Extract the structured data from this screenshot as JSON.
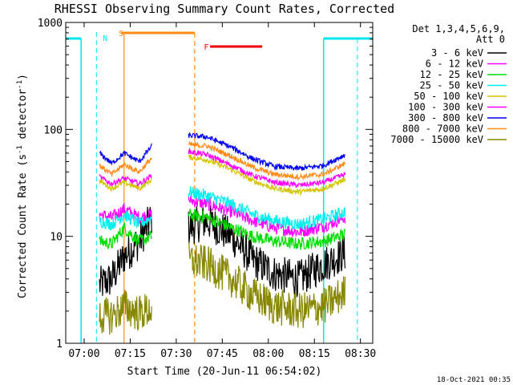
{
  "chart_data": {
    "type": "line",
    "title": "RHESSI Observing Summary Count Rates, Corrected",
    "xlabel": "Start Time (20-Jun-11 06:54:02)",
    "ylabel_main": "Corrected Count Rate (s",
    "ylabel_sup1": "-1",
    "ylabel_mid": " detector",
    "ylabel_sup2": "-1",
    "ylabel_end": ")",
    "yscale": "log",
    "ylim": [
      1,
      1000
    ],
    "xlim": [
      "06:54",
      "08:34"
    ],
    "x_ticks": [
      "07:00",
      "07:15",
      "07:30",
      "07:45",
      "08:00",
      "08:15",
      "08:30"
    ],
    "y_ticks": [
      "1",
      "10",
      "100",
      "1000"
    ],
    "legend_header": [
      "Det 1,3,4,5,6,9,",
      "Att 0"
    ],
    "legend_position": "right",
    "timestamp": "18-Oct-2021 00:35",
    "flags": [
      {
        "label": "N",
        "color": "#00e5ee"
      },
      {
        "label": "S",
        "color": "#ff8c1a"
      },
      {
        "label": "F",
        "color": "#ee0000"
      }
    ],
    "series": [
      {
        "name": "3 - 6 keV",
        "color": "#000000",
        "seg1": [
          3.5,
          4.0,
          6.5,
          9.0,
          15.0
        ],
        "seg2": [
          12.0,
          14.0,
          10.0,
          6.0,
          4.5,
          4.0,
          5.5,
          7.0
        ]
      },
      {
        "name": "6 - 12 keV",
        "color": "#ff00ff",
        "seg1": [
          16.0,
          15.0,
          18.0,
          15.0,
          16.0
        ],
        "seg2": [
          22.0,
          20.0,
          17.0,
          14.0,
          12.0,
          11.0,
          12.5,
          15.0
        ]
      },
      {
        "name": "12 - 25 keV",
        "color": "#00dd00",
        "seg1": [
          9.0,
          8.5,
          12.0,
          9.0,
          10.0
        ],
        "seg2": [
          16.0,
          15.0,
          12.0,
          10.0,
          9.0,
          8.5,
          9.0,
          10.5
        ]
      },
      {
        "name": "25 - 50 keV",
        "color": "#00eeee",
        "seg1": [
          14.0,
          13.0,
          16.0,
          13.0,
          15.0
        ],
        "seg2": [
          26.0,
          24.0,
          20.0,
          16.0,
          14.0,
          13.0,
          14.5,
          17.0
        ]
      },
      {
        "name": "50 - 100 keV",
        "color": "#d4c400",
        "seg1": [
          33.0,
          28.0,
          32.0,
          28.0,
          34.0
        ],
        "seg2": [
          55.0,
          52.0,
          42.0,
          33.0,
          28.0,
          26.0,
          28.0,
          34.0
        ]
      },
      {
        "name": "100 - 300 keV",
        "color": "#ff00ff",
        "seg1": [
          36.0,
          31.0,
          35.0,
          31.0,
          37.0
        ],
        "seg2": [
          62.0,
          58.0,
          46.0,
          37.0,
          32.0,
          30.0,
          32.0,
          38.0
        ]
      },
      {
        "name": "300 - 800 keV",
        "color": "#0000ee",
        "seg1": [
          60.0,
          48.0,
          60.0,
          50.0,
          70.0
        ],
        "seg2": [
          88.0,
          85.0,
          68.0,
          53.0,
          45.0,
          43.0,
          46.0,
          58.0
        ]
      },
      {
        "name": "800 - 7000 keV",
        "color": "#ff8c1a",
        "seg1": [
          46.0,
          38.0,
          47.0,
          40.0,
          54.0
        ],
        "seg2": [
          72.0,
          70.0,
          56.0,
          44.0,
          38.0,
          36.0,
          38.0,
          48.0
        ]
      },
      {
        "name": "7000 - 15000 keV",
        "color": "#888800",
        "seg1": [
          1.8,
          1.8,
          2.2,
          1.9,
          2.1
        ],
        "seg2": [
          6.0,
          5.5,
          4.0,
          2.8,
          2.2,
          2.0,
          2.2,
          3.0
        ]
      }
    ],
    "seg1_x": [
      "07:05",
      "07:09",
      "07:13",
      "07:18",
      "07:22"
    ],
    "seg2_x": [
      "07:34",
      "07:40",
      "07:48",
      "07:55",
      "08:02",
      "08:10",
      "08:18",
      "08:25"
    ]
  }
}
